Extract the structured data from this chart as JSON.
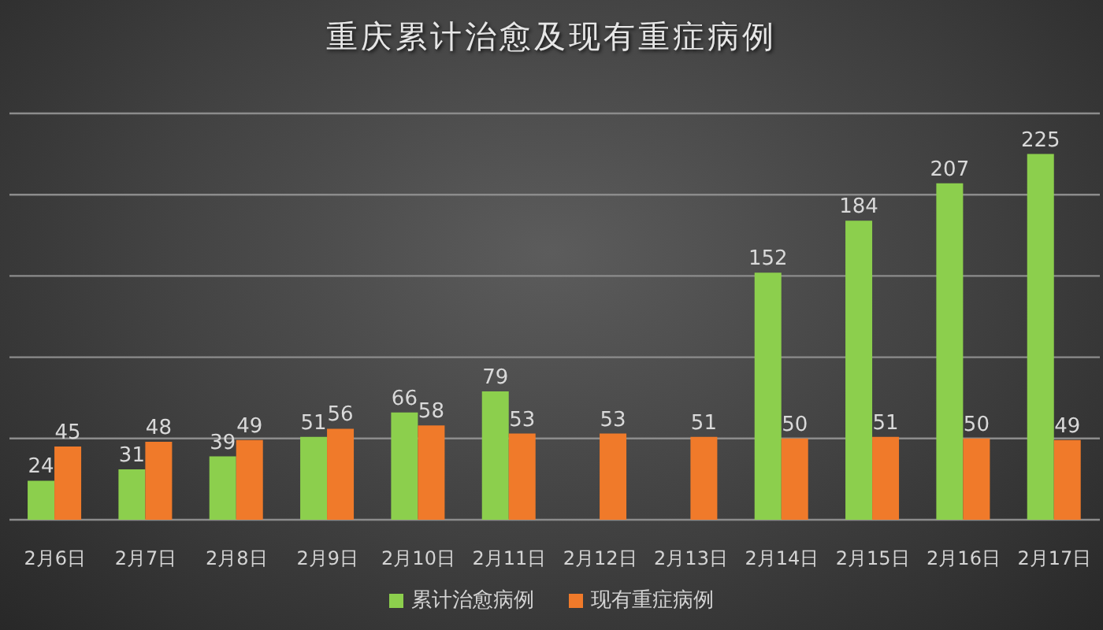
{
  "chart_data": {
    "type": "bar",
    "title": "重庆累计治愈及现有重症病例",
    "categories": [
      "2月6日",
      "2月7日",
      "2月8日",
      "2月9日",
      "2月10日",
      "2月11日",
      "2月12日",
      "2月13日",
      "2月14日",
      "2月15日",
      "2月16日",
      "2月17日"
    ],
    "series": [
      {
        "name": "累计治愈病例",
        "color": "#8ccf4d",
        "values": [
          24,
          31,
          39,
          51,
          66,
          79,
          null,
          null,
          152,
          184,
          207,
          225
        ]
      },
      {
        "name": "现有重症病例",
        "color": "#f07a2a",
        "values": [
          45,
          48,
          49,
          56,
          58,
          53,
          53,
          51,
          50,
          51,
          50,
          49
        ]
      }
    ],
    "ylim": [
      0,
      250
    ],
    "grid": "y",
    "legend": "bottom",
    "tick_labels": "x",
    "data_labels": true
  }
}
